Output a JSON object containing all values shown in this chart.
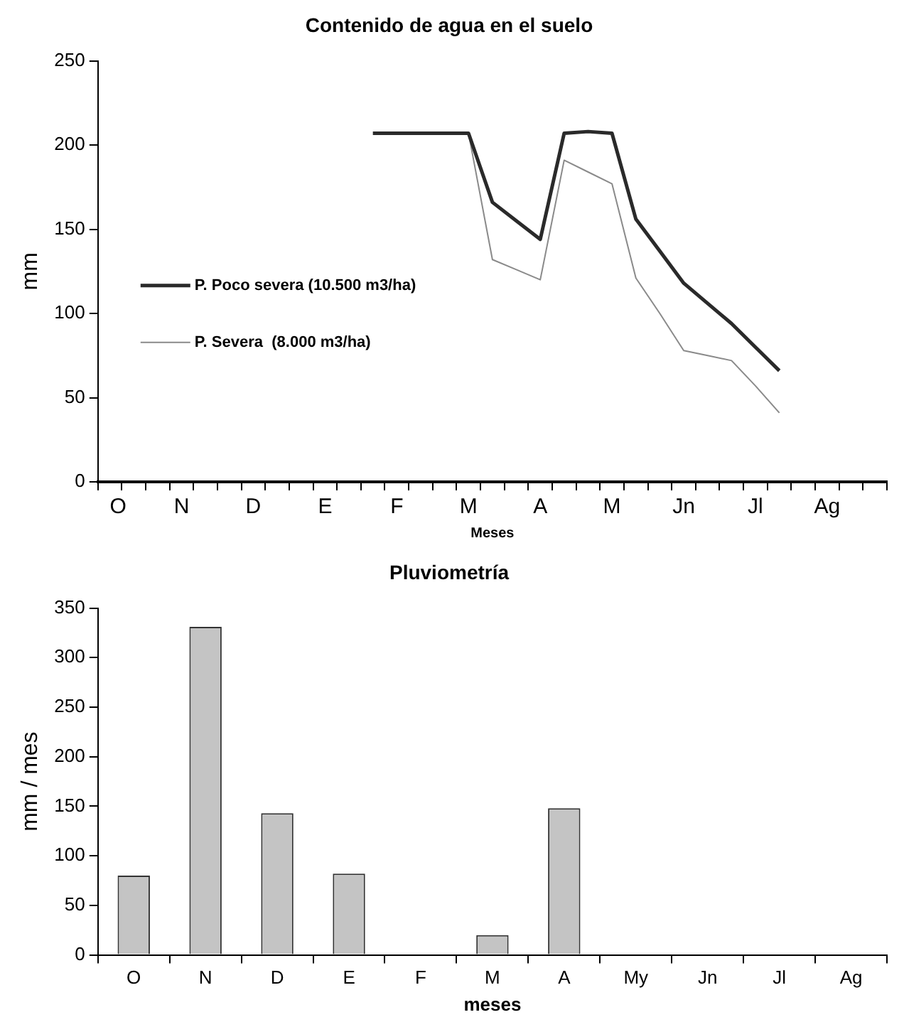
{
  "chart_data": [
    {
      "type": "line",
      "title": "Contenido de agua en el suelo",
      "xlabel": "Meses",
      "ylabel": "mm",
      "categories": [
        "O",
        null,
        null,
        "N",
        null,
        null,
        "D",
        null,
        null,
        "E",
        null,
        null,
        "F",
        null,
        null,
        "M",
        null,
        null,
        "A",
        null,
        null,
        "M",
        null,
        null,
        "Jn",
        null,
        null,
        "Jl",
        null,
        null,
        "Ag",
        null,
        null
      ],
      "ylim": [
        0,
        250
      ],
      "yticks": [
        0,
        50,
        100,
        150,
        200,
        250
      ],
      "grid": false,
      "legend": "left",
      "marker": "none",
      "series": [
        {
          "name": "P. Poco severa (10.500 m3/ha)",
          "color": "#2a2a2a",
          "values": [
            null,
            null,
            null,
            null,
            null,
            null,
            null,
            null,
            null,
            null,
            null,
            207,
            207,
            207,
            207,
            207,
            166,
            155,
            144,
            207,
            208,
            207,
            156,
            137,
            118,
            106,
            94,
            80,
            66,
            null,
            null,
            null,
            null
          ]
        },
        {
          "name": "P. Severa  (8.000 m3/ha)",
          "color": "#8a8a8a",
          "values": [
            null,
            null,
            null,
            null,
            null,
            null,
            null,
            null,
            null,
            null,
            null,
            null,
            null,
            null,
            null,
            207,
            132,
            126,
            120,
            191,
            184,
            177,
            121,
            100,
            78,
            75,
            72,
            57,
            41,
            null,
            null,
            null,
            null
          ]
        }
      ]
    },
    {
      "type": "bar",
      "title": "Pluviometría",
      "xlabel": "meses",
      "ylabel": "mm / mes",
      "categories": [
        "O",
        "N",
        "D",
        "E",
        "F",
        "M",
        "A",
        "My",
        "Jn",
        "Jl",
        "Ag"
      ],
      "values": [
        80,
        331,
        143,
        82,
        0,
        20,
        148,
        0,
        0,
        0,
        0
      ],
      "color": "#c4c4c4",
      "ylim": [
        0,
        350
      ],
      "yticks": [
        0,
        50,
        100,
        150,
        200,
        250,
        300,
        350
      ],
      "grid": false,
      "legend": false
    }
  ]
}
